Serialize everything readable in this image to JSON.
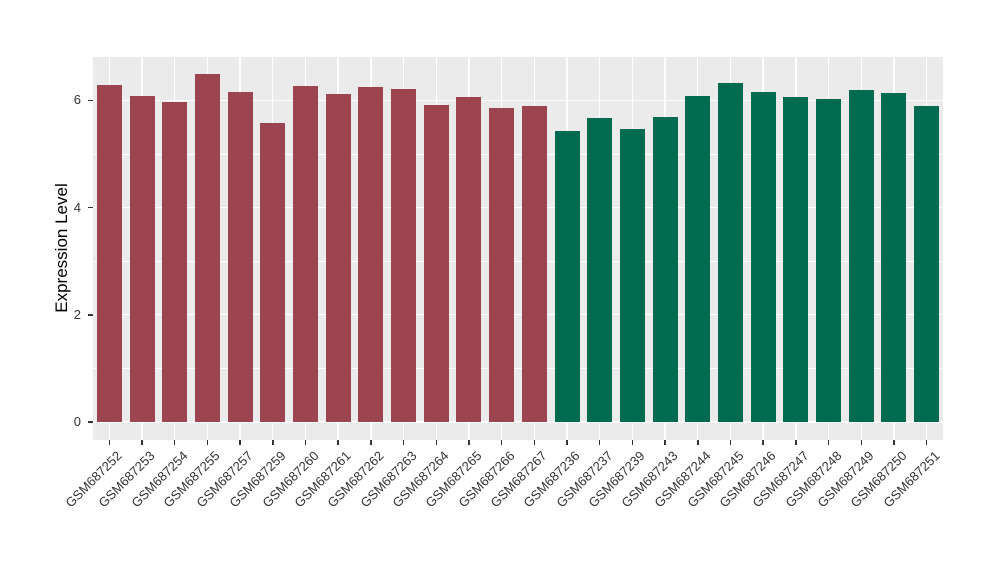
{
  "chart_data": {
    "type": "bar",
    "title": "",
    "xlabel": "",
    "ylabel": "Expression Level",
    "ylim": [
      0,
      6.85
    ],
    "yticks_major": [
      0,
      2,
      4,
      6
    ],
    "yticks_minor": [
      1,
      3,
      5
    ],
    "grid": "on",
    "legend_position": "none",
    "panel_background": "#EBEBEB",
    "gridline_color": "#ffffff",
    "group_colors": {
      "group1": "#9C4450",
      "group2": "#006B4E"
    },
    "bars": [
      {
        "label": "GSM687252",
        "value": 6.29,
        "group": "group1"
      },
      {
        "label": "GSM687253",
        "value": 6.08,
        "group": "group1"
      },
      {
        "label": "GSM687254",
        "value": 5.97,
        "group": "group1"
      },
      {
        "label": "GSM687255",
        "value": 6.5,
        "group": "group1"
      },
      {
        "label": "GSM687257",
        "value": 6.16,
        "group": "group1"
      },
      {
        "label": "GSM687259",
        "value": 5.57,
        "group": "group1"
      },
      {
        "label": "GSM687260",
        "value": 6.26,
        "group": "group1"
      },
      {
        "label": "GSM687261",
        "value": 6.12,
        "group": "group1"
      },
      {
        "label": "GSM687262",
        "value": 6.25,
        "group": "group1"
      },
      {
        "label": "GSM687263",
        "value": 6.21,
        "group": "group1"
      },
      {
        "label": "GSM687264",
        "value": 5.91,
        "group": "group1"
      },
      {
        "label": "GSM687265",
        "value": 6.06,
        "group": "group1"
      },
      {
        "label": "GSM687266",
        "value": 5.85,
        "group": "group1"
      },
      {
        "label": "GSM687267",
        "value": 5.89,
        "group": "group1"
      },
      {
        "label": "GSM687236",
        "value": 5.43,
        "group": "group2"
      },
      {
        "label": "GSM687237",
        "value": 5.68,
        "group": "group2"
      },
      {
        "label": "GSM687239",
        "value": 5.47,
        "group": "group2"
      },
      {
        "label": "GSM687243",
        "value": 5.69,
        "group": "group2"
      },
      {
        "label": "GSM687244",
        "value": 6.08,
        "group": "group2"
      },
      {
        "label": "GSM687245",
        "value": 6.32,
        "group": "group2"
      },
      {
        "label": "GSM687246",
        "value": 6.16,
        "group": "group2"
      },
      {
        "label": "GSM687247",
        "value": 6.07,
        "group": "group2"
      },
      {
        "label": "GSM687248",
        "value": 6.02,
        "group": "group2"
      },
      {
        "label": "GSM687249",
        "value": 6.19,
        "group": "group2"
      },
      {
        "label": "GSM687250",
        "value": 6.13,
        "group": "group2"
      },
      {
        "label": "GSM687251",
        "value": 5.89,
        "group": "group2"
      }
    ]
  }
}
